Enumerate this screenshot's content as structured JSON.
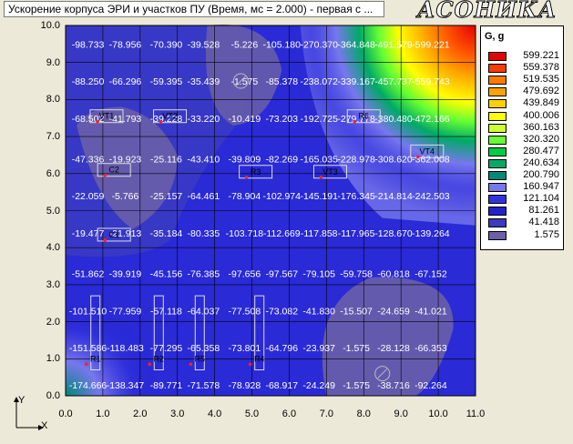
{
  "window": {
    "title": "Ускорение корпуса ЭРИ и участков ПУ (Время, мс = 2.000) - первая с ...",
    "brand": "АСОНИКА"
  },
  "axes": {
    "x_name": "X",
    "y_name": "Y"
  },
  "chart_data": {
    "type": "heatmap",
    "title": "",
    "xlabel": "X",
    "ylabel": "Y",
    "xlim": [
      0,
      11
    ],
    "ylim": [
      0,
      10
    ],
    "x_ticks": [
      "0.0",
      "1.0",
      "2.0",
      "3.0",
      "4.0",
      "5.0",
      "6.0",
      "7.0",
      "8.0",
      "9.0",
      "10.0",
      "11.0"
    ],
    "y_ticks": [
      "0.0",
      "1.0",
      "2.0",
      "3.0",
      "4.0",
      "5.0",
      "6.0",
      "7.0",
      "8.0",
      "9.0",
      "10.0"
    ],
    "grid": true,
    "cell_labels": [
      [
        "-98.733",
        "-78.956",
        "-70.390",
        "-39.528",
        "-5.226",
        "-105.180",
        "-270.370",
        "-364.848",
        "-491.579",
        "-599.221"
      ],
      [
        "-88.250",
        "-66.296",
        "-59.395",
        "-35.439",
        "-1.575",
        "-85.378",
        "-238.072",
        "-339.167",
        "-457.737",
        "-559.743"
      ],
      [
        "-68.502",
        "-41.793",
        "-39.228",
        "-33.220",
        "-10.419",
        "-73.203",
        "-192.725",
        "-279.778",
        "-380.480",
        "-472.166"
      ],
      [
        "-47.336",
        "-19.923",
        "-25.116",
        "-43.410",
        "-39.809",
        "-82.269",
        "-165.035",
        "-228.978",
        "-308.620",
        "-362.008"
      ],
      [
        "-22.059",
        "-5.766",
        "-25.157",
        "-64.461",
        "-78.904",
        "-102.974",
        "-145.191",
        "-176.345",
        "-214.814",
        "-242.503"
      ],
      [
        "-19.477",
        "-21.913",
        "-35.184",
        "-80.335",
        "-103.718",
        "-112.669",
        "-117.858",
        "-117.965",
        "-128.670",
        "-139.264"
      ],
      [
        "-51.862",
        "-39.919",
        "-45.156",
        "-76.385",
        "-97.656",
        "-97.567",
        "-79.105",
        "-59.758",
        "-60.818",
        "-67.152"
      ],
      [
        "-101.510",
        "-77.959",
        "-57.118",
        "-64.037",
        "-77.508",
        "-73.082",
        "-41.830",
        "-15.507",
        "-24.659",
        "-41.021"
      ],
      [
        "-151.586",
        "-118.483",
        "-77.295",
        "-65.358",
        "-73.801",
        "-64.796",
        "-23.937",
        "-1.575",
        "-28.128",
        "-66.353"
      ],
      [
        "-174.666",
        "-138.347",
        "-89.771",
        "-71.578",
        "-78.928",
        "-68.917",
        "-24.249",
        "-1.575",
        "-38.716",
        "-92.264"
      ]
    ],
    "label_positions_y": [
      9.5,
      8.5,
      7.5,
      6.4,
      5.4,
      4.4,
      3.3,
      2.3,
      1.3,
      0.3
    ],
    "label_positions_x": [
      0.6,
      1.6,
      2.7,
      3.7,
      4.8,
      5.8,
      6.8,
      7.8,
      8.8,
      9.8
    ],
    "legend": {
      "title": "G, g",
      "entries": [
        {
          "value": "599.221",
          "color": "#e60000"
        },
        {
          "value": "559.378",
          "color": "#ff3c00"
        },
        {
          "value": "519.535",
          "color": "#ff7a00"
        },
        {
          "value": "479.692",
          "color": "#ffa300"
        },
        {
          "value": "439.849",
          "color": "#ffd000"
        },
        {
          "value": "400.006",
          "color": "#ffff00"
        },
        {
          "value": "360.163",
          "color": "#ccff33"
        },
        {
          "value": "320.320",
          "color": "#66ff33"
        },
        {
          "value": "280.477",
          "color": "#00cc44"
        },
        {
          "value": "240.634",
          "color": "#00aa66"
        },
        {
          "value": "200.790",
          "color": "#008877"
        },
        {
          "value": "160.947",
          "color": "#7777ee"
        },
        {
          "value": "121.104",
          "color": "#3333dd"
        },
        {
          "value": "81.261",
          "color": "#2222cc"
        },
        {
          "value": "41.418",
          "color": "#3b3bbd"
        },
        {
          "value": "1.575",
          "color": "#6a5fa8"
        }
      ],
      "placement": "right"
    },
    "components": [
      {
        "name": "VT1",
        "x": 1.1,
        "y": 7.55
      },
      {
        "name": "VT2",
        "x": 2.8,
        "y": 7.55
      },
      {
        "name": "R6",
        "x": 8.0,
        "y": 7.55
      },
      {
        "name": "VT4",
        "x": 9.7,
        "y": 6.6
      },
      {
        "name": "C2",
        "x": 1.3,
        "y": 6.1
      },
      {
        "name": "R3",
        "x": 5.1,
        "y": 6.05
      },
      {
        "name": "VT3",
        "x": 7.1,
        "y": 6.05
      },
      {
        "name": "C1",
        "x": 1.3,
        "y": 4.35
      },
      {
        "name": "R1",
        "x": 0.8,
        "y": 1.0
      },
      {
        "name": "R2",
        "x": 2.5,
        "y": 1.0
      },
      {
        "name": "R5",
        "x": 3.6,
        "y": 1.0
      },
      {
        "name": "R4",
        "x": 5.2,
        "y": 1.0
      }
    ]
  }
}
